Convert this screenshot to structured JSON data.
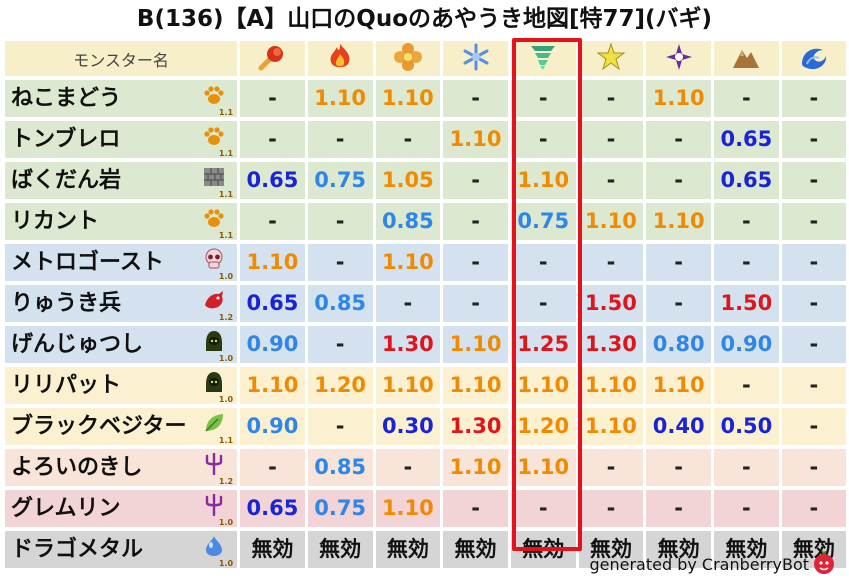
{
  "title": "B(136)【A】山口のQuoのあやうき地図[特77](バギ)",
  "header": {
    "name_label": "モンスター名",
    "elements": [
      {
        "icon": "fire-ball-icon",
        "color": "#d23a10"
      },
      {
        "icon": "flame-icon",
        "color": "#e84a14"
      },
      {
        "icon": "explosion-flower-icon",
        "color": "#e89a20"
      },
      {
        "icon": "snowflake-icon",
        "color": "#4e86d8"
      },
      {
        "icon": "tornado-icon",
        "color": "#3aa07a"
      },
      {
        "icon": "lightning-star-icon",
        "color": "#e8d020"
      },
      {
        "icon": "dark-shuriken-icon",
        "color": "#6a2aa0"
      },
      {
        "icon": "rock-mountain-icon",
        "color": "#a0703a"
      },
      {
        "icon": "water-wave-icon",
        "color": "#2a6ad8"
      }
    ]
  },
  "rows": [
    {
      "name": "ねこまどう",
      "type_icon": "paw-icon",
      "level": "1.1",
      "tint": "green",
      "values": [
        {
          "t": "-",
          "c": "dash"
        },
        {
          "t": "1.10",
          "c": "orange"
        },
        {
          "t": "1.10",
          "c": "orange"
        },
        {
          "t": "-",
          "c": "dash"
        },
        {
          "t": "-",
          "c": "dash"
        },
        {
          "t": "-",
          "c": "dash"
        },
        {
          "t": "1.10",
          "c": "orange"
        },
        {
          "t": "-",
          "c": "dash"
        },
        {
          "t": "-",
          "c": "dash"
        }
      ]
    },
    {
      "name": "トンブレロ",
      "type_icon": "paw-icon",
      "level": "1.1",
      "tint": "green",
      "values": [
        {
          "t": "-",
          "c": "dash"
        },
        {
          "t": "-",
          "c": "dash"
        },
        {
          "t": "-",
          "c": "dash"
        },
        {
          "t": "1.10",
          "c": "orange"
        },
        {
          "t": "-",
          "c": "dash"
        },
        {
          "t": "-",
          "c": "dash"
        },
        {
          "t": "-",
          "c": "dash"
        },
        {
          "t": "0.65",
          "c": "blue"
        },
        {
          "t": "-",
          "c": "dash"
        }
      ]
    },
    {
      "name": "ばくだん岩",
      "type_icon": "brick-icon",
      "level": "1.1",
      "tint": "green",
      "values": [
        {
          "t": "0.65",
          "c": "blue"
        },
        {
          "t": "0.75",
          "c": "lblue"
        },
        {
          "t": "1.05",
          "c": "orange"
        },
        {
          "t": "-",
          "c": "dash"
        },
        {
          "t": "1.10",
          "c": "orange"
        },
        {
          "t": "-",
          "c": "dash"
        },
        {
          "t": "-",
          "c": "dash"
        },
        {
          "t": "0.65",
          "c": "blue"
        },
        {
          "t": "-",
          "c": "dash"
        }
      ]
    },
    {
      "name": "リカント",
      "type_icon": "paw-icon",
      "level": "1.1",
      "tint": "green",
      "values": [
        {
          "t": "-",
          "c": "dash"
        },
        {
          "t": "-",
          "c": "dash"
        },
        {
          "t": "0.85",
          "c": "lblue"
        },
        {
          "t": "-",
          "c": "dash"
        },
        {
          "t": "0.75",
          "c": "lblue"
        },
        {
          "t": "1.10",
          "c": "orange"
        },
        {
          "t": "1.10",
          "c": "orange"
        },
        {
          "t": "-",
          "c": "dash"
        },
        {
          "t": "-",
          "c": "dash"
        }
      ]
    },
    {
      "name": "メトロゴースト",
      "type_icon": "skull-icon",
      "level": "1.0",
      "tint": "blue",
      "values": [
        {
          "t": "1.10",
          "c": "orange"
        },
        {
          "t": "-",
          "c": "dash"
        },
        {
          "t": "1.10",
          "c": "orange"
        },
        {
          "t": "-",
          "c": "dash"
        },
        {
          "t": "-",
          "c": "dash"
        },
        {
          "t": "-",
          "c": "dash"
        },
        {
          "t": "-",
          "c": "dash"
        },
        {
          "t": "-",
          "c": "dash"
        },
        {
          "t": "-",
          "c": "dash"
        }
      ]
    },
    {
      "name": "りゅうき兵",
      "type_icon": "dragon-icon",
      "level": "1.2",
      "tint": "blue",
      "values": [
        {
          "t": "0.65",
          "c": "blue"
        },
        {
          "t": "0.85",
          "c": "lblue"
        },
        {
          "t": "-",
          "c": "dash"
        },
        {
          "t": "-",
          "c": "dash"
        },
        {
          "t": "-",
          "c": "dash"
        },
        {
          "t": "1.50",
          "c": "red"
        },
        {
          "t": "-",
          "c": "dash"
        },
        {
          "t": "1.50",
          "c": "red"
        },
        {
          "t": "-",
          "c": "dash"
        }
      ]
    },
    {
      "name": "げんじゅつし",
      "type_icon": "hooded-figure-icon",
      "level": "1.0",
      "tint": "blue",
      "values": [
        {
          "t": "0.90",
          "c": "lblue"
        },
        {
          "t": "-",
          "c": "dash"
        },
        {
          "t": "1.30",
          "c": "red"
        },
        {
          "t": "1.10",
          "c": "orange"
        },
        {
          "t": "1.25",
          "c": "red"
        },
        {
          "t": "1.30",
          "c": "red"
        },
        {
          "t": "0.80",
          "c": "lblue"
        },
        {
          "t": "0.90",
          "c": "lblue"
        },
        {
          "t": "-",
          "c": "dash"
        }
      ]
    },
    {
      "name": "リリパット",
      "type_icon": "hooded-figure-icon",
      "level": "1.0",
      "tint": "yellow",
      "values": [
        {
          "t": "1.10",
          "c": "orange"
        },
        {
          "t": "1.20",
          "c": "orange"
        },
        {
          "t": "1.10",
          "c": "orange"
        },
        {
          "t": "1.10",
          "c": "orange"
        },
        {
          "t": "1.10",
          "c": "orange"
        },
        {
          "t": "1.10",
          "c": "orange"
        },
        {
          "t": "1.10",
          "c": "orange"
        },
        {
          "t": "-",
          "c": "dash"
        },
        {
          "t": "-",
          "c": "dash"
        }
      ]
    },
    {
      "name": "ブラックベジター",
      "type_icon": "leaf-icon",
      "level": "1.1",
      "tint": "yellow",
      "values": [
        {
          "t": "0.90",
          "c": "lblue"
        },
        {
          "t": "-",
          "c": "dash"
        },
        {
          "t": "0.30",
          "c": "blue"
        },
        {
          "t": "1.30",
          "c": "red"
        },
        {
          "t": "1.20",
          "c": "orange"
        },
        {
          "t": "1.10",
          "c": "orange"
        },
        {
          "t": "0.40",
          "c": "blue"
        },
        {
          "t": "0.50",
          "c": "blue"
        },
        {
          "t": "-",
          "c": "dash"
        }
      ]
    },
    {
      "name": "よろいのきし",
      "type_icon": "trident-icon",
      "level": "1.2",
      "tint": "peach",
      "values": [
        {
          "t": "-",
          "c": "dash"
        },
        {
          "t": "0.85",
          "c": "lblue"
        },
        {
          "t": "-",
          "c": "dash"
        },
        {
          "t": "1.10",
          "c": "orange"
        },
        {
          "t": "1.10",
          "c": "orange"
        },
        {
          "t": "-",
          "c": "dash"
        },
        {
          "t": "-",
          "c": "dash"
        },
        {
          "t": "-",
          "c": "dash"
        },
        {
          "t": "-",
          "c": "dash"
        }
      ]
    },
    {
      "name": "グレムリン",
      "type_icon": "trident-icon",
      "level": "1.0",
      "tint": "pink",
      "values": [
        {
          "t": "0.65",
          "c": "blue"
        },
        {
          "t": "0.75",
          "c": "lblue"
        },
        {
          "t": "1.10",
          "c": "orange"
        },
        {
          "t": "-",
          "c": "dash"
        },
        {
          "t": "-",
          "c": "dash"
        },
        {
          "t": "-",
          "c": "dash"
        },
        {
          "t": "-",
          "c": "dash"
        },
        {
          "t": "-",
          "c": "dash"
        },
        {
          "t": "-",
          "c": "dash"
        }
      ]
    },
    {
      "name": "ドラゴメタル",
      "type_icon": "slime-icon",
      "level": "1.0",
      "tint": "gray",
      "values": [
        {
          "t": "無効",
          "c": "black"
        },
        {
          "t": "無効",
          "c": "black"
        },
        {
          "t": "無効",
          "c": "black"
        },
        {
          "t": "無効",
          "c": "black"
        },
        {
          "t": "無効",
          "c": "black"
        },
        {
          "t": "無効",
          "c": "black"
        },
        {
          "t": "無効",
          "c": "black"
        },
        {
          "t": "無効",
          "c": "black"
        },
        {
          "t": "無効",
          "c": "black"
        }
      ]
    }
  ],
  "footer": {
    "credit": "generated by CranberryBot",
    "icon": "cranberry-icon"
  }
}
